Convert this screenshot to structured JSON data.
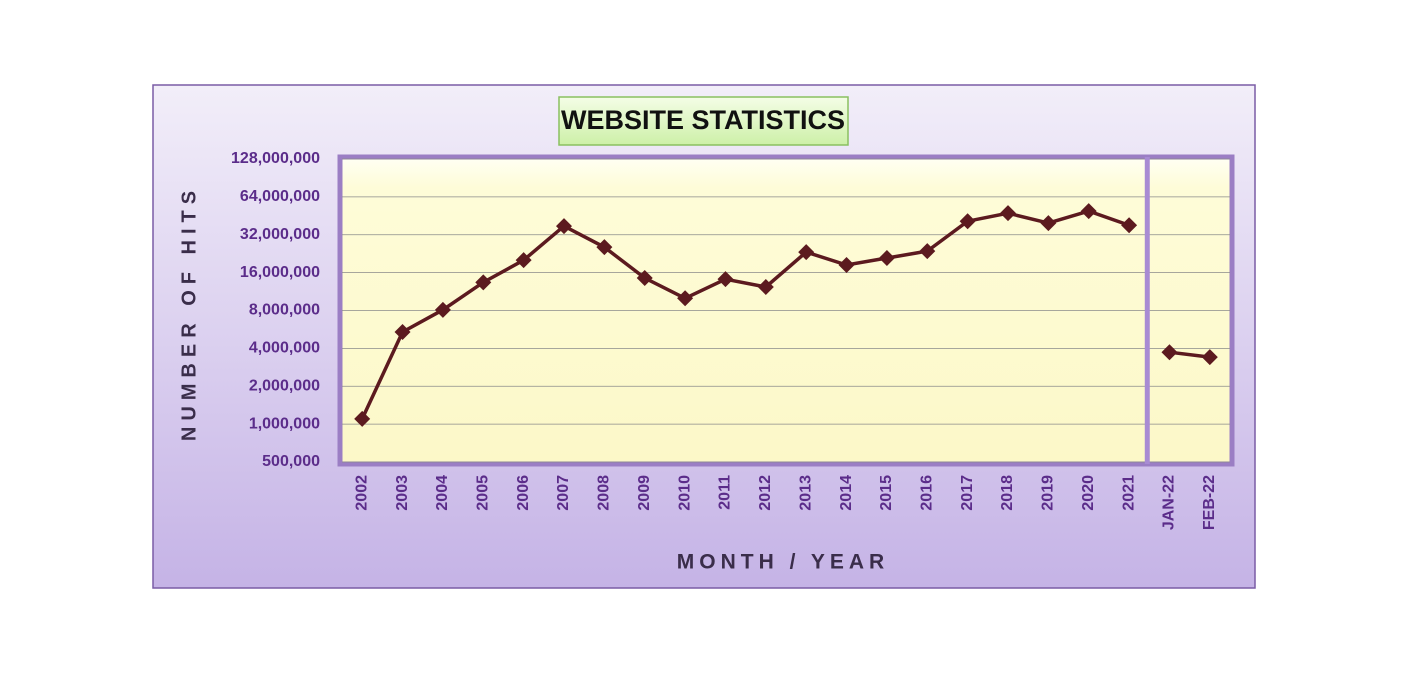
{
  "chart_data": {
    "type": "line",
    "title": "WEBSITE STATISTICS",
    "x_label": "MONTH / YEAR",
    "y_label": "NUMBER OF HITS",
    "yscale": "log",
    "grid": true,
    "categories": [
      "2002",
      "2003",
      "2004",
      "2005",
      "2006",
      "2007",
      "2008",
      "2009",
      "2010",
      "2011",
      "2012",
      "2013",
      "2014",
      "2015",
      "2016",
      "2017",
      "2018",
      "2019",
      "2020",
      "2021",
      "JAN-22",
      "FEB-22"
    ],
    "series": [
      {
        "color": "#5c1a1f",
        "values": [
          1100000,
          5400000,
          8100000,
          13400000,
          20100000,
          37500000,
          25500000,
          14500000,
          10000000,
          14200000,
          12300000,
          23300000,
          18400000,
          20900000,
          23700000,
          41000000,
          47500000,
          39600000,
          49300000,
          38100000,
          null,
          null
        ]
      },
      {
        "color": "#5c1a1f",
        "values": [
          null,
          null,
          null,
          null,
          null,
          null,
          null,
          null,
          null,
          null,
          null,
          null,
          null,
          null,
          null,
          null,
          null,
          null,
          null,
          null,
          3730000,
          3410000
        ]
      }
    ],
    "ylim": [
      500000,
      128000000
    ],
    "yticks": [
      {
        "value": 500000,
        "label": "500,000"
      },
      {
        "value": 1000000,
        "label": "1,000,000"
      },
      {
        "value": 2000000,
        "label": "2,000,000"
      },
      {
        "value": 4000000,
        "label": "4,000,000"
      },
      {
        "value": 8000000,
        "label": "8,000,000"
      },
      {
        "value": 16000000,
        "label": "16,000,000"
      },
      {
        "value": 32000000,
        "label": "32,000,000"
      },
      {
        "value": 64000000,
        "label": "64,000,000"
      },
      {
        "value": 128000000,
        "label": "128,000,000"
      }
    ]
  }
}
